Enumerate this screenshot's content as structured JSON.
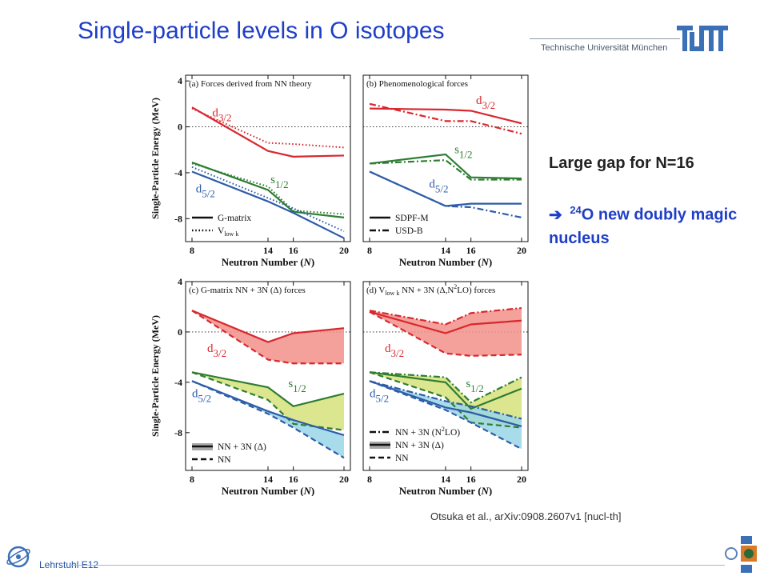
{
  "slide": {
    "title": "Single-particle levels in O isotopes",
    "institution": "Technische Universität München",
    "tum_logo_text": "TUM",
    "chair": "Lehrstuhl E12",
    "citation": "Otsuka et al., arXiv:0908.2607v1 [nucl-th]",
    "gap_line": "Large gap for N=16",
    "doubly_magic": {
      "arrow": "➔",
      "mass": "24",
      "text": "O new doubly magic nucleus"
    }
  },
  "colors": {
    "title": "#1f3ec7",
    "red": "#d9272e",
    "green": "#2e7d32",
    "blue": "#2e5ca8",
    "red_fill": "#f2908a",
    "green_fill": "#d6e27a",
    "blue_fill": "#9ad6e8"
  },
  "chart_data": [
    {
      "type": "line",
      "panel": "(a) Forces derived from NN theory",
      "xlabel": "Neutron Number (N)",
      "ylabel": "Single-Particle Energy (MeV)",
      "x": [
        8,
        14,
        16,
        20
      ],
      "xticks": [
        "8",
        "14",
        "16",
        "20"
      ],
      "yticks": [
        "4",
        "0",
        "-4",
        "-8"
      ],
      "xlim": [
        8,
        20
      ],
      "ylim": [
        -10,
        4.5
      ],
      "legend": [
        {
          "label": "G-matrix",
          "style": "solid"
        },
        {
          "label": "V",
          "sub": "low k",
          "style": "dotted"
        }
      ],
      "level_labels": [
        {
          "orb": "d",
          "sub": "3/2",
          "color": "red",
          "at": [
            9.6,
            0.9
          ]
        },
        {
          "orb": "s",
          "sub": "1/2",
          "color": "green",
          "at": [
            14.2,
            -4.9
          ]
        },
        {
          "orb": "d",
          "sub": "5/2",
          "color": "blue",
          "at": [
            8.3,
            -5.7
          ]
        }
      ],
      "series": [
        {
          "level": "d3/2",
          "force": "G-matrix",
          "color": "red",
          "style": "solid",
          "values": [
            1.7,
            -2.1,
            -2.6,
            -2.5
          ]
        },
        {
          "level": "d3/2",
          "force": "Vlowk",
          "color": "red",
          "style": "dotted",
          "values": [
            1.6,
            -1.4,
            -1.5,
            -1.8
          ]
        },
        {
          "level": "s1/2",
          "force": "G-matrix",
          "color": "green",
          "style": "solid",
          "values": [
            -3.1,
            -5.5,
            -7.4,
            -7.9
          ]
        },
        {
          "level": "s1/2",
          "force": "Vlowk",
          "color": "green",
          "style": "dotted",
          "values": [
            -3.2,
            -5.2,
            -7.3,
            -7.6
          ]
        },
        {
          "level": "d5/2",
          "force": "G-matrix",
          "color": "blue",
          "style": "solid",
          "values": [
            -3.9,
            -6.5,
            -7.5,
            -9.7
          ]
        },
        {
          "level": "d5/2",
          "force": "Vlowk",
          "color": "blue",
          "style": "dotted",
          "values": [
            -3.5,
            -6.2,
            -7.1,
            -9.1
          ]
        }
      ]
    },
    {
      "type": "line",
      "panel": "(b) Phenomenological forces",
      "xlabel": "Neutron Number (N)",
      "ylabel": "",
      "x": [
        8,
        14,
        16,
        20
      ],
      "xticks": [
        "8",
        "14",
        "16",
        "20"
      ],
      "xlim": [
        8,
        20
      ],
      "ylim": [
        -10,
        4.5
      ],
      "legend": [
        {
          "label": "SDPF-M",
          "style": "solid"
        },
        {
          "label": "USD-B",
          "style": "dashdot"
        }
      ],
      "level_labels": [
        {
          "orb": "d",
          "sub": "3/2",
          "color": "red",
          "at": [
            16.4,
            2.0
          ]
        },
        {
          "orb": "s",
          "sub": "1/2",
          "color": "green",
          "at": [
            14.7,
            -2.3
          ]
        },
        {
          "orb": "d",
          "sub": "5/2",
          "color": "blue",
          "at": [
            12.7,
            -5.3
          ]
        }
      ],
      "series": [
        {
          "level": "d3/2",
          "force": "SDPF-M",
          "color": "red",
          "style": "solid",
          "values": [
            1.6,
            1.5,
            1.4,
            0.3
          ]
        },
        {
          "level": "d3/2",
          "force": "USD-B",
          "color": "red",
          "style": "dashdot",
          "values": [
            2.0,
            0.5,
            0.5,
            -0.6
          ]
        },
        {
          "level": "s1/2",
          "force": "SDPF-M",
          "color": "green",
          "style": "solid",
          "values": [
            -3.2,
            -2.4,
            -4.4,
            -4.5
          ]
        },
        {
          "level": "s1/2",
          "force": "USD-B",
          "color": "green",
          "style": "dashdot",
          "values": [
            -3.2,
            -2.9,
            -4.6,
            -4.6
          ]
        },
        {
          "level": "d5/2",
          "force": "SDPF-M",
          "color": "blue",
          "style": "solid",
          "values": [
            -3.9,
            -6.9,
            -6.7,
            -6.7
          ]
        },
        {
          "level": "d5/2",
          "force": "USD-B",
          "color": "blue",
          "style": "dashdot",
          "values": [
            -3.9,
            -6.9,
            -7.0,
            -7.9
          ]
        }
      ]
    },
    {
      "type": "area",
      "panel": "(c) G-matrix NN + 3N (Δ) forces",
      "xlabel": "Neutron Number (N)",
      "ylabel": "Single-Particle Energy (MeV)",
      "x": [
        8,
        14,
        16,
        20
      ],
      "xticks": [
        "8",
        "14",
        "16",
        "20"
      ],
      "yticks": [
        "4",
        "0",
        "-4",
        "-8"
      ],
      "xlim": [
        8,
        20
      ],
      "ylim": [
        -11,
        4
      ],
      "legend": [
        {
          "label": "NN + 3N (Δ)",
          "style": "solid"
        },
        {
          "label": "NN",
          "style": "dashed"
        }
      ],
      "level_labels": [
        {
          "orb": "d",
          "sub": "3/2",
          "color": "red",
          "at": [
            9.2,
            -1.6
          ]
        },
        {
          "orb": "s",
          "sub": "1/2",
          "color": "green",
          "at": [
            15.6,
            -4.4
          ]
        },
        {
          "orb": "d",
          "sub": "5/2",
          "color": "blue",
          "at": [
            8.0,
            -5.2
          ]
        }
      ],
      "series": [
        {
          "level": "d3/2",
          "force": "NN+3N",
          "color": "red",
          "style": "solid",
          "values": [
            1.7,
            -0.8,
            -0.1,
            0.3
          ]
        },
        {
          "level": "d3/2",
          "force": "NN",
          "color": "red",
          "style": "dashed",
          "values": [
            1.7,
            -2.2,
            -2.5,
            -2.5
          ]
        },
        {
          "level": "s1/2",
          "force": "NN+3N",
          "color": "green",
          "style": "solid",
          "values": [
            -3.2,
            -4.4,
            -5.9,
            -4.9
          ]
        },
        {
          "level": "s1/2",
          "force": "NN",
          "color": "green",
          "style": "dashed",
          "values": [
            -3.2,
            -5.4,
            -7.3,
            -7.8
          ]
        },
        {
          "level": "d5/2",
          "force": "NN+3N",
          "color": "blue",
          "style": "solid",
          "values": [
            -3.9,
            -6.3,
            -7.0,
            -8.2
          ]
        },
        {
          "level": "d5/2",
          "force": "NN",
          "color": "blue",
          "style": "dashed",
          "values": [
            -3.9,
            -6.5,
            -7.6,
            -10.0
          ]
        }
      ]
    },
    {
      "type": "area",
      "panel": "(d) V",
      "panel_sub": "low k",
      "panel_rest": " NN + 3N (Δ,N",
      "panel_sup": "2",
      "panel_end": "LO) forces",
      "xlabel": "Neutron Number (N)",
      "ylabel": "",
      "x": [
        8,
        14,
        16,
        20
      ],
      "xticks": [
        "8",
        "14",
        "16",
        "20"
      ],
      "xlim": [
        8,
        20
      ],
      "ylim": [
        -11,
        4
      ],
      "legend": [
        {
          "label": "NN + 3N (N",
          "sup": "2",
          "end": "LO)",
          "style": "dashdot"
        },
        {
          "label": "NN + 3N (Δ)",
          "style": "solid"
        },
        {
          "label": "NN",
          "style": "dashed"
        }
      ],
      "level_labels": [
        {
          "orb": "d",
          "sub": "3/2",
          "color": "red",
          "at": [
            9.2,
            -1.6
          ]
        },
        {
          "orb": "s",
          "sub": "1/2",
          "color": "green",
          "at": [
            15.6,
            -4.4
          ]
        },
        {
          "orb": "d",
          "sub": "5/2",
          "color": "blue",
          "at": [
            8.0,
            -5.2
          ]
        }
      ],
      "series": [
        {
          "level": "d3/2",
          "force": "NN+3N(N2LO)",
          "color": "red",
          "style": "dashdot",
          "values": [
            1.7,
            0.6,
            1.5,
            1.9
          ]
        },
        {
          "level": "d3/2",
          "force": "NN+3N(D)",
          "color": "red",
          "style": "solid",
          "values": [
            1.6,
            -0.1,
            0.6,
            0.9
          ]
        },
        {
          "level": "d3/2",
          "force": "NN",
          "color": "red",
          "style": "dashed",
          "values": [
            1.6,
            -1.7,
            -1.9,
            -1.8
          ]
        },
        {
          "level": "s1/2",
          "force": "NN+3N(N2LO)",
          "color": "green",
          "style": "dashdot",
          "values": [
            -3.2,
            -3.6,
            -5.6,
            -3.6
          ]
        },
        {
          "level": "s1/2",
          "force": "NN+3N(D)",
          "color": "green",
          "style": "solid",
          "values": [
            -3.2,
            -4.0,
            -6.1,
            -4.5
          ]
        },
        {
          "level": "s1/2",
          "force": "NN",
          "color": "green",
          "style": "dashed",
          "values": [
            -3.2,
            -5.2,
            -7.2,
            -7.6
          ]
        },
        {
          "level": "d5/2",
          "force": "NN+3N(N2LO)",
          "color": "blue",
          "style": "dashdot",
          "values": [
            -3.9,
            -5.5,
            -5.9,
            -6.9
          ]
        },
        {
          "level": "d5/2",
          "force": "NN+3N(D)",
          "color": "blue",
          "style": "solid",
          "values": [
            -3.9,
            -6.0,
            -6.4,
            -7.5
          ]
        },
        {
          "level": "d5/2",
          "force": "NN",
          "color": "blue",
          "style": "dashed",
          "values": [
            -3.9,
            -6.2,
            -7.2,
            -9.3
          ]
        }
      ]
    }
  ]
}
